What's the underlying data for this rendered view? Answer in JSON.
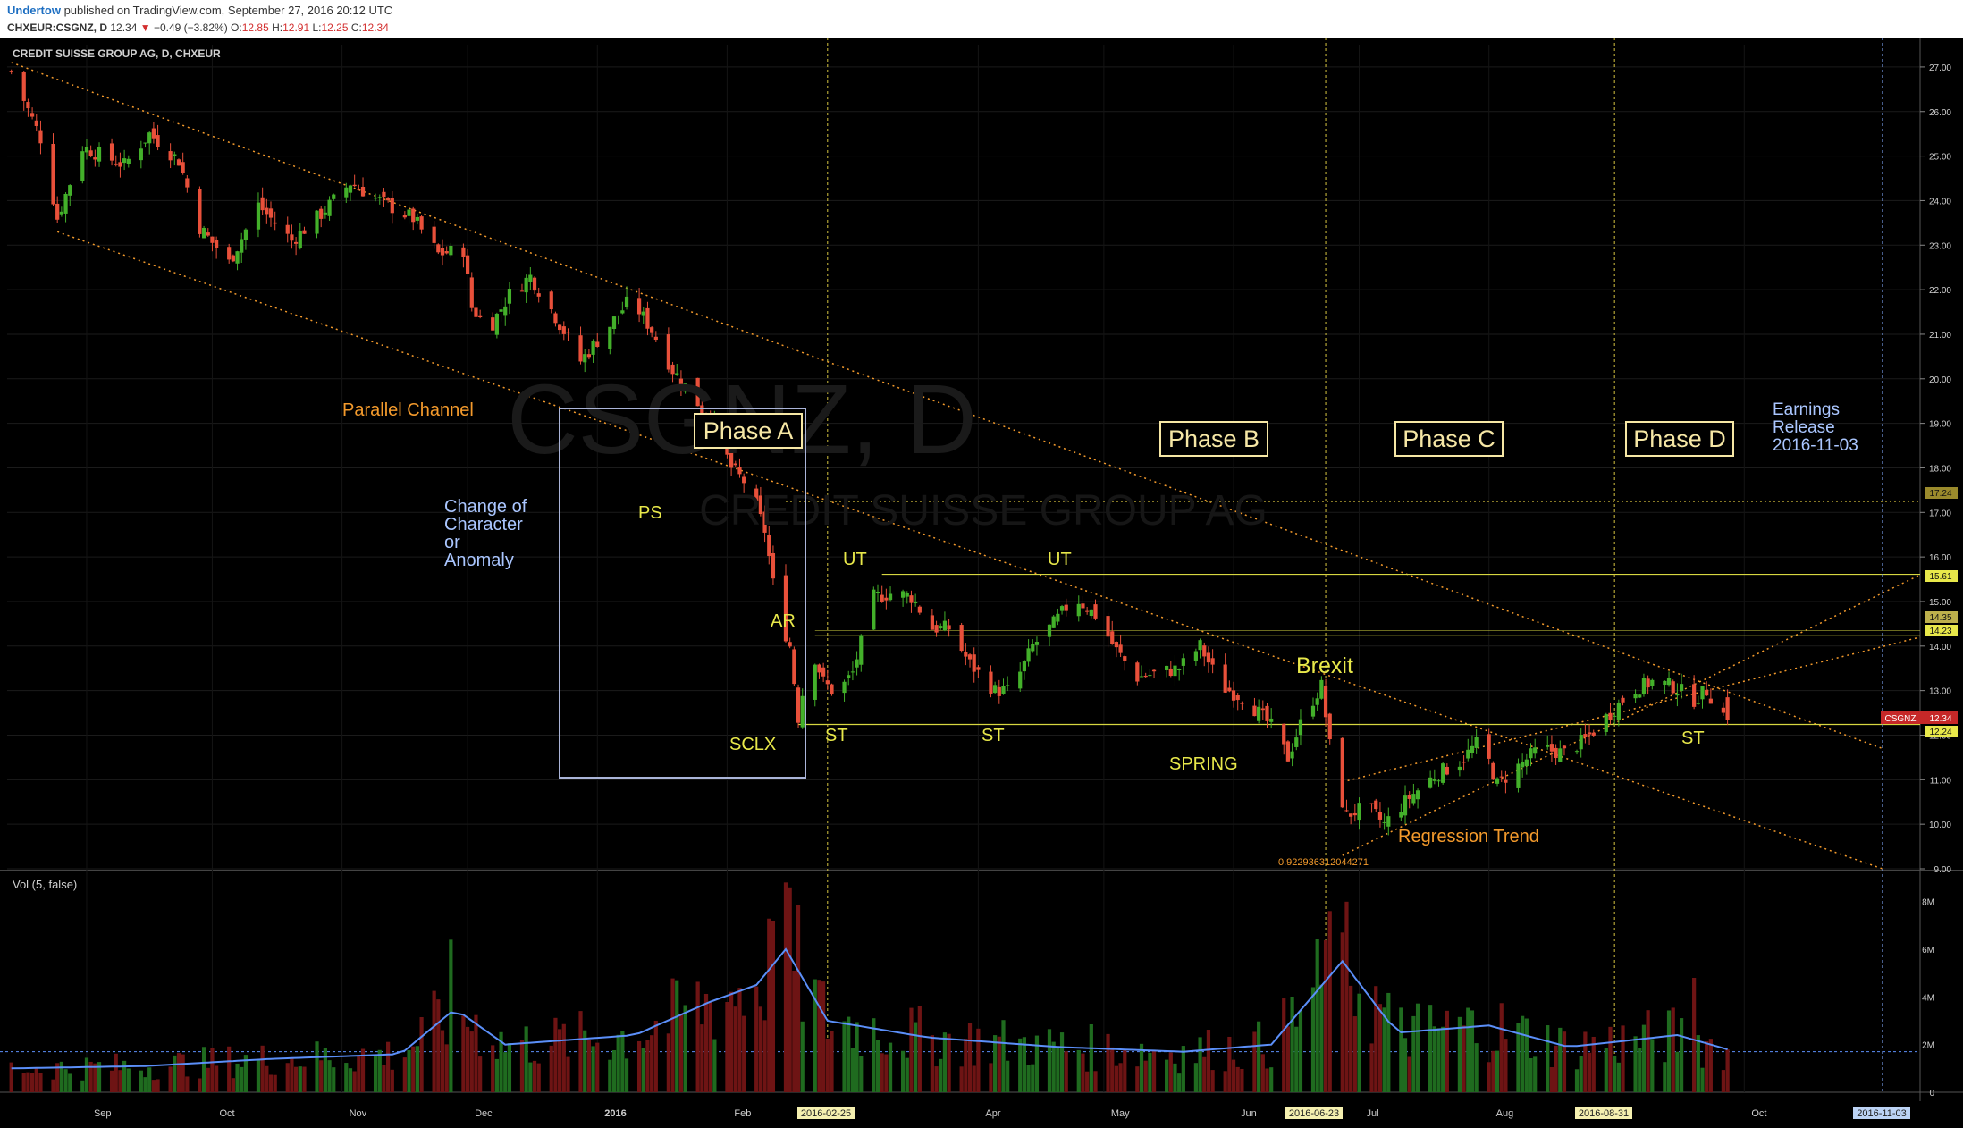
{
  "header": {
    "author": "Undertow",
    "published": "published on TradingView.com, September 27, 2016 20:12 UTC",
    "symbol": "CHXEUR:CSGNZ, D",
    "last": "12.34",
    "change": "−0.49 (−3.82%)",
    "o_label": "O:",
    "o": "12.85",
    "h_label": "H:",
    "h": "12.91",
    "l_label": "L:",
    "l": "12.25",
    "c_label": "C:",
    "c": "12.34"
  },
  "main": {
    "legend": "CREDIT SUISSE GROUP AG, D, CHXEUR",
    "watermark": "CSGNZ, D",
    "watermark_sub": "CREDIT SUISSE GROUP AG",
    "volume_legend": "Vol (5, false)"
  },
  "colors": {
    "background": "#000000",
    "up": "#43b02a",
    "down": "#e8503a",
    "up_volume": "#1f6b1f",
    "down_volume": "#6e1414",
    "volume_ma": "#5b8ff9",
    "channel": "#f39a2c",
    "levels": "#d6d640",
    "phase_box": "#f6e7a5",
    "note": "#aac6ff"
  },
  "chart_data": [
    {
      "type": "candlestick",
      "title": "CREDIT SUISSE GROUP AG, D, CHXEUR",
      "ylim": [
        9.0,
        27.5
      ],
      "y_ticks": [
        "27.00",
        "26.00",
        "25.00",
        "24.00",
        "23.00",
        "22.00",
        "21.00",
        "20.00",
        "19.00",
        "18.00",
        "17.00",
        "16.00",
        "15.00",
        "14.00",
        "13.00",
        "12.00",
        "11.00",
        "10.00",
        "9.00"
      ],
      "x_ticks": [
        "Sep",
        "Oct",
        "Nov",
        "Dec",
        "2016",
        "Feb",
        "Apr",
        "May",
        "Jun",
        "Jul",
        "Aug",
        "Oct"
      ],
      "x_range": [
        "2015-08-13",
        "2016-11-12"
      ],
      "ohlc_anchors": [
        [
          "2015-08-14",
          26.9
        ],
        [
          "2015-08-21",
          25.4
        ],
        [
          "2015-08-25",
          23.6
        ],
        [
          "2015-08-31",
          25.2
        ],
        [
          "2015-09-10",
          24.8
        ],
        [
          "2015-09-16",
          25.5
        ],
        [
          "2015-09-23",
          24.9
        ],
        [
          "2015-09-28",
          23.4
        ],
        [
          "2015-10-05",
          22.6
        ],
        [
          "2015-10-12",
          23.9
        ],
        [
          "2015-10-20",
          23.1
        ],
        [
          "2015-10-27",
          23.7
        ],
        [
          "2015-11-03",
          24.4
        ],
        [
          "2015-11-10",
          24.0
        ],
        [
          "2015-11-18",
          23.6
        ],
        [
          "2015-11-24",
          22.8
        ],
        [
          "2015-11-30",
          22.9
        ],
        [
          "2015-12-02",
          21.6
        ],
        [
          "2015-12-06",
          21.1
        ],
        [
          "2015-12-11",
          21.9
        ],
        [
          "2015-12-16",
          22.3
        ],
        [
          "2015-12-22",
          21.4
        ],
        [
          "2015-12-28",
          20.4
        ],
        [
          "2016-01-04",
          21.2
        ],
        [
          "2016-01-09",
          21.8
        ],
        [
          "2016-01-14",
          21.1
        ],
        [
          "2016-01-19",
          20.2
        ],
        [
          "2016-01-24",
          19.6
        ],
        [
          "2016-01-29",
          18.9
        ],
        [
          "2016-02-02",
          18.0
        ],
        [
          "2016-02-06",
          17.6
        ],
        [
          "2016-02-10",
          16.6
        ],
        [
          "2016-02-13",
          14.8
        ],
        [
          "2016-02-16",
          14.0
        ],
        [
          "2016-02-18",
          12.4
        ],
        [
          "2016-02-21",
          14.0
        ],
        [
          "2016-02-24",
          13.2
        ],
        [
          "2016-02-27",
          12.9
        ],
        [
          "2016-03-02",
          13.4
        ],
        [
          "2016-03-07",
          15.1
        ],
        [
          "2016-03-12",
          15.2
        ],
        [
          "2016-03-16",
          15.1
        ],
        [
          "2016-03-21",
          14.4
        ],
        [
          "2016-03-25",
          14.4
        ],
        [
          "2016-03-30",
          13.6
        ],
        [
          "2016-04-05",
          13.0
        ],
        [
          "2016-04-09",
          13.0
        ],
        [
          "2016-04-14",
          14.0
        ],
        [
          "2016-04-19",
          14.5
        ],
        [
          "2016-04-24",
          15.1
        ],
        [
          "2016-04-29",
          14.7
        ],
        [
          "2016-05-04",
          13.9
        ],
        [
          "2016-05-09",
          13.3
        ],
        [
          "2016-05-14",
          13.4
        ],
        [
          "2016-05-19",
          13.5
        ],
        [
          "2016-05-24",
          14.0
        ],
        [
          "2016-05-29",
          13.1
        ],
        [
          "2016-06-04",
          12.8
        ],
        [
          "2016-06-10",
          12.2
        ],
        [
          "2016-06-14",
          11.5
        ],
        [
          "2016-06-18",
          12.5
        ],
        [
          "2016-06-22",
          13.1
        ],
        [
          "2016-06-25",
          11.1
        ],
        [
          "2016-06-28",
          10.2
        ],
        [
          "2016-07-03",
          10.4
        ],
        [
          "2016-07-07",
          10.0
        ],
        [
          "2016-07-13",
          10.6
        ],
        [
          "2016-07-19",
          11.1
        ],
        [
          "2016-07-25",
          11.4
        ],
        [
          "2016-07-30",
          11.9
        ],
        [
          "2016-08-03",
          10.9
        ],
        [
          "2016-08-08",
          11.3
        ],
        [
          "2016-08-13",
          11.7
        ],
        [
          "2016-08-19",
          11.6
        ],
        [
          "2016-08-24",
          11.9
        ],
        [
          "2016-08-29",
          12.4
        ],
        [
          "2016-09-04",
          13.0
        ],
        [
          "2016-09-09",
          13.2
        ],
        [
          "2016-09-14",
          13.1
        ],
        [
          "2016-09-19",
          12.8
        ],
        [
          "2016-09-22",
          13.0
        ],
        [
          "2016-09-27",
          12.34
        ]
      ],
      "last_bar": {
        "open": 12.85,
        "high": 12.91,
        "low": 12.25,
        "close": 12.34
      }
    },
    {
      "type": "bar",
      "title": "Vol (5, false)",
      "ylim": [
        0,
        9000000
      ],
      "y_ticks": [
        "8M",
        "6M",
        "4M",
        "2M",
        "0"
      ],
      "volume_anchors": [
        [
          "2015-08-14",
          1.0
        ],
        [
          "2015-09-15",
          1.1
        ],
        [
          "2015-10-15",
          1.4
        ],
        [
          "2015-11-15",
          1.6
        ],
        [
          "2015-11-28",
          3.5
        ],
        [
          "2015-12-10",
          2.0
        ],
        [
          "2016-01-10",
          2.4
        ],
        [
          "2016-01-28",
          3.8
        ],
        [
          "2016-02-08",
          4.5
        ],
        [
          "2016-02-15",
          6.0
        ],
        [
          "2016-02-25",
          3.0
        ],
        [
          "2016-03-20",
          2.3
        ],
        [
          "2016-04-20",
          1.9
        ],
        [
          "2016-05-20",
          1.7
        ],
        [
          "2016-06-10",
          2.0
        ],
        [
          "2016-06-27",
          5.5
        ],
        [
          "2016-07-10",
          2.5
        ],
        [
          "2016-08-01",
          2.8
        ],
        [
          "2016-08-20",
          1.9
        ],
        [
          "2016-09-15",
          2.4
        ],
        [
          "2016-09-27",
          1.8
        ]
      ],
      "ma_level": 1.7,
      "spikes": [
        [
          "2015-11-27",
          6.4
        ],
        [
          "2016-02-15",
          8.8
        ],
        [
          "2016-02-12",
          7.2
        ],
        [
          "2016-06-24",
          7.6
        ],
        [
          "2016-06-27",
          6.7
        ],
        [
          "2016-09-19",
          4.8
        ]
      ]
    }
  ],
  "annotations": {
    "parallel_channel": "Parallel Channel",
    "change_of_character": [
      "Change of",
      "Character",
      "or",
      "Anomaly"
    ],
    "ps": "PS",
    "phase_a": "Phase A",
    "phase_b": "Phase B",
    "phase_c": "Phase C",
    "phase_d": "Phase D",
    "earnings": [
      "Earnings",
      "Release",
      "2016-11-03"
    ],
    "ut1": "UT",
    "ut2": "UT",
    "ar": "AR",
    "sclx": "SCLX",
    "st1": "ST",
    "st2": "ST",
    "st3": "ST",
    "spring": "SPRING",
    "brexit": "Brexit",
    "regression_trend": "Regression Trend",
    "regression_value": "0.922936312044271"
  },
  "markers": {
    "date_1": "2016-02-25",
    "date_2": "2016-06-23",
    "date_3": "2016-08-31",
    "date_4": "2016-11-03"
  },
  "price_labels": {
    "p1": "17.24",
    "p2": "15.61",
    "p3": "14.35",
    "p4": "14.23",
    "symbol_tag": "CSGNZ",
    "last": "12.34",
    "p5": "12.24"
  }
}
